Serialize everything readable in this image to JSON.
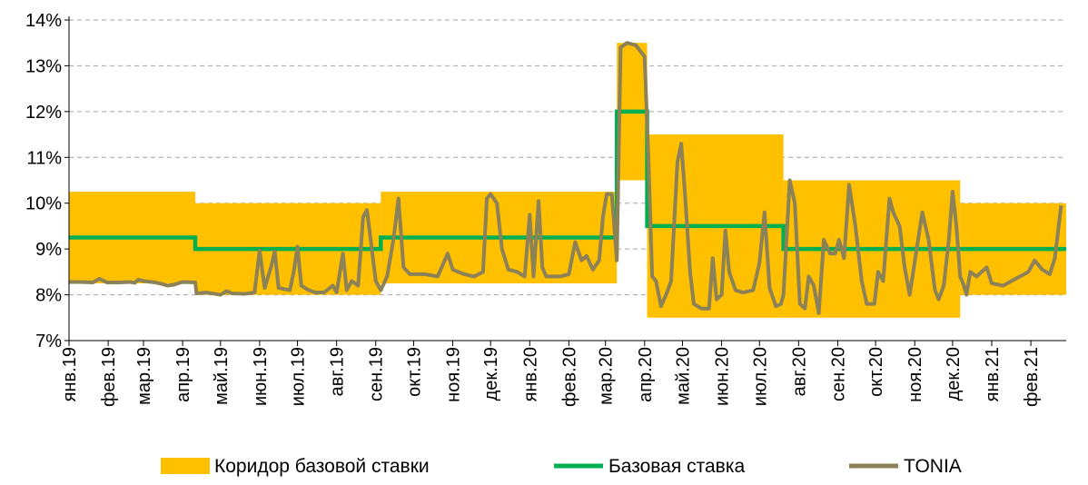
{
  "colors": {
    "corridor": "#FFC000",
    "base_rate": "#00B050",
    "tonia": "#8C8157",
    "grid": "#A6A6A6",
    "axis": "#000000"
  },
  "chart_data": {
    "type": "line",
    "y_axis": {
      "range": [
        7,
        14
      ],
      "ticks": [
        7,
        8,
        9,
        10,
        11,
        12,
        13,
        14
      ],
      "tick_labels": [
        "7%",
        "8%",
        "9%",
        "10%",
        "11%",
        "12%",
        "13%",
        "14%"
      ],
      "grid": "dashed horizontal"
    },
    "x_axis": {
      "range": [
        "2019-01-01",
        "2021-03-01"
      ],
      "ticks": [
        "2019-01-01",
        "2019-02-01",
        "2019-03-01",
        "2019-04-01",
        "2019-05-01",
        "2019-06-01",
        "2019-07-01",
        "2019-08-01",
        "2019-09-01",
        "2019-10-01",
        "2019-11-01",
        "2019-12-01",
        "2020-01-01",
        "2020-02-01",
        "2020-03-01",
        "2020-04-01",
        "2020-05-01",
        "2020-06-01",
        "2020-07-01",
        "2020-08-01",
        "2020-09-01",
        "2020-10-01",
        "2020-11-01",
        "2020-12-01",
        "2021-01-01",
        "2021-02-01"
      ],
      "tick_labels": [
        "янв.19",
        "фев.19",
        "мар.19",
        "апр.19",
        "май.19",
        "июн.19",
        "июл.19",
        "авг.19",
        "сен.19",
        "окт.19",
        "ноя.19",
        "дек.19",
        "янв.20",
        "фев.20",
        "мар.20",
        "апр.20",
        "май.20",
        "июн.20",
        "июл.20",
        "авг.20",
        "сен.20",
        "окт.20",
        "ноя.20",
        "дек.20",
        "янв.21",
        "фев.21"
      ],
      "label_rotation": "vertical"
    },
    "legend": {
      "position": "bottom",
      "items": [
        {
          "label": "Коридор базовой ставки",
          "key": "corridor"
        },
        {
          "label": "Базовая ставка",
          "key": "base_rate"
        },
        {
          "label": "TONIA",
          "key": "tonia"
        }
      ]
    },
    "corridor": [
      {
        "from": "2019-01-01",
        "to": "2019-04-11",
        "low": 8.25,
        "high": 10.25
      },
      {
        "from": "2019-04-11",
        "to": "2019-09-05",
        "low": 8.0,
        "high": 10.0
      },
      {
        "from": "2019-09-05",
        "to": "2020-03-10",
        "low": 8.25,
        "high": 10.25
      },
      {
        "from": "2020-03-10",
        "to": "2020-04-03",
        "low": 10.5,
        "high": 13.5
      },
      {
        "from": "2020-04-03",
        "to": "2020-07-20",
        "low": 7.5,
        "high": 11.5
      },
      {
        "from": "2020-07-20",
        "to": "2020-12-07",
        "low": 7.5,
        "high": 10.5
      },
      {
        "from": "2020-12-07",
        "to": "2021-03-01",
        "low": 8.0,
        "high": 10.0
      }
    ],
    "base_rate": [
      {
        "from": "2019-01-01",
        "to": "2019-04-11",
        "value": 9.25
      },
      {
        "from": "2019-04-11",
        "to": "2019-09-05",
        "value": 9.0
      },
      {
        "from": "2019-09-05",
        "to": "2020-03-10",
        "value": 9.25
      },
      {
        "from": "2020-03-10",
        "to": "2020-04-03",
        "value": 12.0
      },
      {
        "from": "2020-04-03",
        "to": "2020-07-20",
        "value": 9.5
      },
      {
        "from": "2020-07-20",
        "to": "2021-03-01",
        "value": 9.0
      }
    ],
    "tonia": [
      [
        "2019-01-01",
        8.28
      ],
      [
        "2019-01-10",
        8.28
      ],
      [
        "2019-01-20",
        8.27
      ],
      [
        "2019-01-25",
        8.35
      ],
      [
        "2019-01-31",
        8.27
      ],
      [
        "2019-02-10",
        8.27
      ],
      [
        "2019-02-18",
        8.28
      ],
      [
        "2019-02-22",
        8.26
      ],
      [
        "2019-02-25",
        8.33
      ],
      [
        "2019-03-01",
        8.3
      ],
      [
        "2019-03-10",
        8.27
      ],
      [
        "2019-03-15",
        8.24
      ],
      [
        "2019-03-20",
        8.2
      ],
      [
        "2019-03-25",
        8.22
      ],
      [
        "2019-04-01",
        8.28
      ],
      [
        "2019-04-11",
        8.27
      ],
      [
        "2019-04-12",
        8.03
      ],
      [
        "2019-04-20",
        8.05
      ],
      [
        "2019-05-01",
        8.0
      ],
      [
        "2019-05-06",
        8.08
      ],
      [
        "2019-05-10",
        8.03
      ],
      [
        "2019-05-20",
        8.02
      ],
      [
        "2019-05-28",
        8.05
      ],
      [
        "2019-06-01",
        8.97
      ],
      [
        "2019-06-05",
        8.15
      ],
      [
        "2019-06-10",
        8.6
      ],
      [
        "2019-06-13",
        8.95
      ],
      [
        "2019-06-16",
        8.15
      ],
      [
        "2019-06-25",
        8.1
      ],
      [
        "2019-06-28",
        8.5
      ],
      [
        "2019-07-01",
        9.05
      ],
      [
        "2019-07-04",
        8.2
      ],
      [
        "2019-07-10",
        8.1
      ],
      [
        "2019-07-15",
        8.05
      ],
      [
        "2019-07-22",
        8.05
      ],
      [
        "2019-07-29",
        8.2
      ],
      [
        "2019-08-01",
        8.05
      ],
      [
        "2019-08-06",
        8.9
      ],
      [
        "2019-08-09",
        8.1
      ],
      [
        "2019-08-13",
        8.3
      ],
      [
        "2019-08-18",
        8.2
      ],
      [
        "2019-08-22",
        9.7
      ],
      [
        "2019-08-25",
        9.85
      ],
      [
        "2019-08-28",
        9.2
      ],
      [
        "2019-09-01",
        8.3
      ],
      [
        "2019-09-05",
        8.1
      ],
      [
        "2019-09-10",
        8.4
      ],
      [
        "2019-09-15",
        9.2
      ],
      [
        "2019-09-19",
        10.1
      ],
      [
        "2019-09-23",
        8.6
      ],
      [
        "2019-09-28",
        8.45
      ],
      [
        "2019-10-10",
        8.45
      ],
      [
        "2019-10-20",
        8.4
      ],
      [
        "2019-10-28",
        8.9
      ],
      [
        "2019-11-01",
        8.55
      ],
      [
        "2019-11-10",
        8.45
      ],
      [
        "2019-11-18",
        8.4
      ],
      [
        "2019-11-25",
        8.5
      ],
      [
        "2019-11-28",
        10.1
      ],
      [
        "2019-12-01",
        10.2
      ],
      [
        "2019-12-06",
        10.0
      ],
      [
        "2019-12-10",
        9.0
      ],
      [
        "2019-12-15",
        8.55
      ],
      [
        "2019-12-22",
        8.5
      ],
      [
        "2019-12-28",
        8.4
      ],
      [
        "2020-01-01",
        9.75
      ],
      [
        "2020-01-04",
        8.4
      ],
      [
        "2020-01-08",
        10.05
      ],
      [
        "2020-01-11",
        8.6
      ],
      [
        "2020-01-14",
        8.4
      ],
      [
        "2020-01-25",
        8.4
      ],
      [
        "2020-02-01",
        8.45
      ],
      [
        "2020-02-06",
        9.15
      ],
      [
        "2020-02-11",
        8.75
      ],
      [
        "2020-02-15",
        8.85
      ],
      [
        "2020-02-20",
        8.55
      ],
      [
        "2020-02-25",
        8.75
      ],
      [
        "2020-02-28",
        9.7
      ],
      [
        "2020-03-02",
        10.2
      ],
      [
        "2020-03-06",
        10.2
      ],
      [
        "2020-03-10",
        8.75
      ],
      [
        "2020-03-13",
        13.4
      ],
      [
        "2020-03-18",
        13.5
      ],
      [
        "2020-03-25",
        13.45
      ],
      [
        "2020-04-01",
        13.2
      ],
      [
        "2020-04-04",
        11.0
      ],
      [
        "2020-04-07",
        8.4
      ],
      [
        "2020-04-10",
        8.3
      ],
      [
        "2020-04-14",
        7.75
      ],
      [
        "2020-04-18",
        8.0
      ],
      [
        "2020-04-22",
        8.3
      ],
      [
        "2020-04-27",
        10.9
      ],
      [
        "2020-04-30",
        11.3
      ],
      [
        "2020-05-03",
        10.2
      ],
      [
        "2020-05-07",
        8.5
      ],
      [
        "2020-05-10",
        7.8
      ],
      [
        "2020-05-16",
        7.7
      ],
      [
        "2020-05-22",
        7.7
      ],
      [
        "2020-05-25",
        8.8
      ],
      [
        "2020-05-28",
        7.9
      ],
      [
        "2020-06-01",
        8.0
      ],
      [
        "2020-06-04",
        9.4
      ],
      [
        "2020-06-07",
        8.5
      ],
      [
        "2020-06-12",
        8.1
      ],
      [
        "2020-06-18",
        8.05
      ],
      [
        "2020-06-26",
        8.1
      ],
      [
        "2020-07-01",
        8.7
      ],
      [
        "2020-07-05",
        9.8
      ],
      [
        "2020-07-09",
        8.15
      ],
      [
        "2020-07-14",
        7.75
      ],
      [
        "2020-07-18",
        7.8
      ],
      [
        "2020-07-20",
        8.0
      ],
      [
        "2020-07-25",
        10.5
      ],
      [
        "2020-07-29",
        10.0
      ],
      [
        "2020-08-02",
        7.8
      ],
      [
        "2020-08-06",
        7.7
      ],
      [
        "2020-08-09",
        8.4
      ],
      [
        "2020-08-13",
        8.2
      ],
      [
        "2020-08-17",
        7.6
      ],
      [
        "2020-08-21",
        9.2
      ],
      [
        "2020-08-26",
        8.9
      ],
      [
        "2020-08-30",
        8.9
      ],
      [
        "2020-09-02",
        9.2
      ],
      [
        "2020-09-06",
        8.8
      ],
      [
        "2020-09-10",
        10.4
      ],
      [
        "2020-09-15",
        9.5
      ],
      [
        "2020-09-20",
        8.3
      ],
      [
        "2020-09-24",
        7.8
      ],
      [
        "2020-09-30",
        7.8
      ],
      [
        "2020-10-03",
        8.5
      ],
      [
        "2020-10-07",
        8.3
      ],
      [
        "2020-10-12",
        10.1
      ],
      [
        "2020-10-15",
        9.8
      ],
      [
        "2020-10-20",
        9.5
      ],
      [
        "2020-10-24",
        8.6
      ],
      [
        "2020-10-28",
        8.0
      ],
      [
        "2020-11-02",
        8.9
      ],
      [
        "2020-11-07",
        9.8
      ],
      [
        "2020-11-12",
        9.2
      ],
      [
        "2020-11-17",
        8.1
      ],
      [
        "2020-11-20",
        7.9
      ],
      [
        "2020-11-24",
        8.2
      ],
      [
        "2020-11-28",
        9.2
      ],
      [
        "2020-12-01",
        10.25
      ],
      [
        "2020-12-04",
        9.5
      ],
      [
        "2020-12-07",
        8.4
      ],
      [
        "2020-12-10",
        8.2
      ],
      [
        "2020-12-12",
        8.0
      ],
      [
        "2020-12-15",
        8.5
      ],
      [
        "2020-12-20",
        8.4
      ],
      [
        "2020-12-28",
        8.6
      ],
      [
        "2021-01-01",
        8.25
      ],
      [
        "2021-01-10",
        8.2
      ],
      [
        "2021-01-20",
        8.35
      ],
      [
        "2021-01-30",
        8.5
      ],
      [
        "2021-02-04",
        8.75
      ],
      [
        "2021-02-10",
        8.55
      ],
      [
        "2021-02-16",
        8.45
      ],
      [
        "2021-02-20",
        8.8
      ],
      [
        "2021-02-25",
        9.95
      ]
    ]
  }
}
